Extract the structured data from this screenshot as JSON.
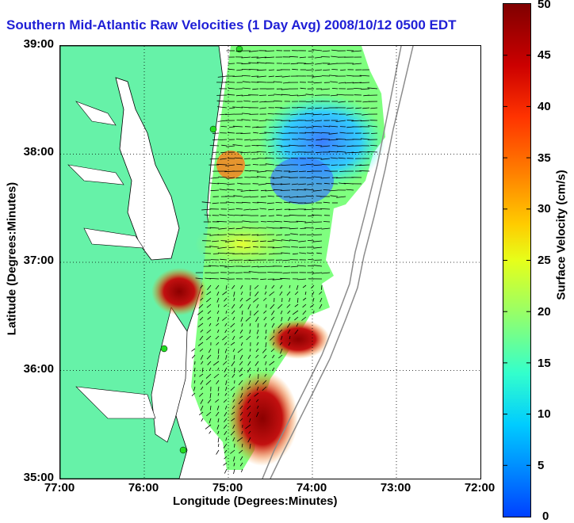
{
  "title": "Southern Mid-Atlantic Raw Velocities (1 Day Avg) 2008/10/12 0500 EDT",
  "axes": {
    "xlabel": "Longitude (Degrees:Minutes)",
    "ylabel": "Latitude (Degrees:Minutes)",
    "xticks": [
      "77:00",
      "76:00",
      "75:00",
      "74:00",
      "73:00",
      "72:00"
    ],
    "yticks": [
      "39:00",
      "38:00",
      "37:00",
      "36:00",
      "35:00"
    ]
  },
  "colorbar": {
    "label": "Surface Velocity (cm/s)",
    "ticks": [
      "50",
      "45",
      "40",
      "35",
      "30",
      "25",
      "20",
      "15",
      "10",
      "5",
      "0"
    ],
    "min": 0,
    "max": 50
  },
  "colors": {
    "land": "#66f2a8",
    "title": "#1f1fd6",
    "coast_line": "#000000",
    "bathymetry": "#8c8c8c",
    "site_marker": "#22dd22"
  },
  "map": {
    "lon_range": [
      -77,
      -72
    ],
    "lat_range": [
      35,
      39
    ],
    "grid": "dotted"
  }
}
